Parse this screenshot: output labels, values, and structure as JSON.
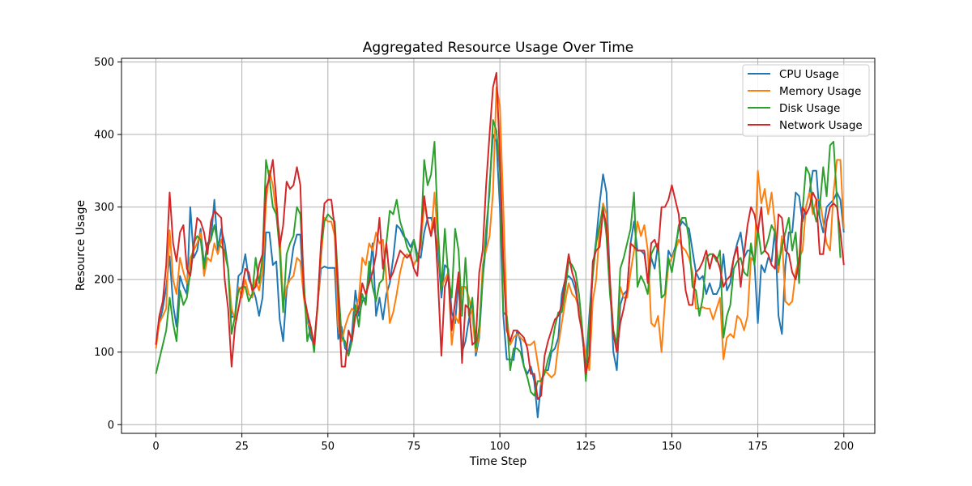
{
  "chart_data": {
    "type": "line",
    "title": "Aggregated Resource Usage Over Time",
    "xlabel": "Time Step",
    "ylabel": "Resource Usage",
    "xlim": [
      -10,
      209
    ],
    "ylim": [
      -12,
      505
    ],
    "xticks": [
      0,
      25,
      50,
      75,
      100,
      125,
      150,
      175,
      200
    ],
    "yticks": [
      0,
      100,
      200,
      300,
      400,
      500
    ],
    "grid": true,
    "legend_position": "top-right",
    "x_start": 0,
    "series": [
      {
        "name": "CPU Usage",
        "color": "#1f77b4",
        "values": [
          110,
          140,
          160,
          190,
          232,
          165,
          135,
          205,
          190,
          180,
          300,
          230,
          240,
          270,
          220,
          250,
          255,
          310,
          240,
          270,
          250,
          215,
          148,
          150,
          205,
          210,
          235,
          200,
          190,
          175,
          150,
          175,
          265,
          265,
          220,
          225,
          145,
          115,
          185,
          210,
          245,
          262,
          262,
          178,
          148,
          120,
          110,
          165,
          215,
          218,
          216,
          216,
          216,
          118,
          135,
          105,
          100,
          125,
          185,
          150,
          170,
          175,
          200,
          250,
          150,
          175,
          145,
          180,
          195,
          230,
          275,
          270,
          260,
          255,
          245,
          255,
          235,
          230,
          265,
          285,
          285,
          270,
          240,
          175,
          220,
          215,
          155,
          140,
          200,
          100,
          115,
          145,
          170,
          95,
          120,
          200,
          250,
          330,
          400,
          390,
          300,
          150,
          90,
          90,
          89,
          130,
          115,
          80,
          70,
          80,
          60,
          10,
          60,
          75,
          75,
          100,
          105,
          120,
          180,
          200,
          205,
          200,
          185,
          160,
          120,
          80,
          150,
          215,
          255,
          305,
          345,
          320,
          200,
          100,
          75,
          165,
          180,
          185,
          250,
          280,
          240,
          240,
          235,
          200,
          230,
          215,
          250,
          175,
          180,
          240,
          230,
          245,
          270,
          280,
          275,
          270,
          240,
          210,
          200,
          205,
          180,
          195,
          180,
          180,
          190,
          235,
          185,
          195,
          230,
          250,
          265,
          230,
          240,
          240,
          225,
          140,
          220,
          210,
          230,
          225,
          270,
          150,
          125,
          220,
          265,
          265,
          320,
          315,
          280,
          300,
          320,
          350,
          350,
          285,
          265,
          300,
          305,
          310,
          320,
          310,
          265
        ]
      },
      {
        "name": "Memory Usage",
        "color": "#ff7f0e",
        "values": [
          105,
          140,
          150,
          160,
          268,
          200,
          180,
          230,
          210,
          195,
          230,
          240,
          250,
          265,
          205,
          230,
          225,
          250,
          235,
          255,
          235,
          215,
          160,
          145,
          190,
          175,
          200,
          180,
          175,
          200,
          185,
          210,
          305,
          350,
          330,
          290,
          260,
          165,
          190,
          200,
          205,
          230,
          225,
          175,
          140,
          135,
          110,
          160,
          230,
          285,
          280,
          280,
          260,
          135,
          115,
          135,
          150,
          160,
          155,
          175,
          230,
          220,
          250,
          240,
          265,
          250,
          255,
          200,
          140,
          155,
          180,
          210,
          230,
          235,
          230,
          220,
          230,
          245,
          305,
          280,
          260,
          320,
          255,
          190,
          200,
          210,
          110,
          150,
          140,
          190,
          190,
          175,
          150,
          100,
          125,
          220,
          240,
          260,
          320,
          465,
          440,
          300,
          150,
          110,
          120,
          125,
          120,
          115,
          110,
          110,
          115,
          85,
          55,
          75,
          70,
          65,
          70,
          110,
          140,
          170,
          195,
          180,
          175,
          160,
          125,
          95,
          75,
          170,
          200,
          270,
          305,
          290,
          195,
          130,
          110,
          190,
          175,
          175,
          210,
          240,
          280,
          260,
          275,
          240,
          140,
          135,
          150,
          100,
          170,
          220,
          230,
          240,
          255,
          245,
          240,
          230,
          210,
          160,
          160,
          162,
          160,
          160,
          145,
          160,
          175,
          90,
          120,
          125,
          120,
          150,
          145,
          130,
          150,
          230,
          225,
          350,
          305,
          325,
          290,
          320,
          275,
          210,
          260,
          170,
          165,
          170,
          210,
          230,
          240,
          300,
          320,
          290,
          310,
          310,
          280,
          250,
          240,
          320,
          365,
          365,
          270
        ]
      },
      {
        "name": "Disk Usage",
        "color": "#2ca02c",
        "values": [
          70,
          90,
          110,
          130,
          175,
          140,
          115,
          185,
          165,
          175,
          210,
          250,
          260,
          255,
          215,
          245,
          255,
          275,
          250,
          245,
          240,
          215,
          125,
          150,
          185,
          190,
          190,
          170,
          180,
          230,
          195,
          230,
          365,
          340,
          300,
          290,
          240,
          155,
          235,
          250,
          260,
          300,
          290,
          200,
          115,
          135,
          100,
          165,
          245,
          280,
          290,
          285,
          280,
          195,
          120,
          115,
          95,
          115,
          165,
          135,
          180,
          165,
          225,
          190,
          170,
          195,
          200,
          250,
          295,
          290,
          310,
          280,
          265,
          245,
          235,
          255,
          225,
          250,
          365,
          330,
          345,
          390,
          270,
          185,
          270,
          205,
          175,
          270,
          240,
          150,
          230,
          150,
          175,
          105,
          135,
          200,
          270,
          320,
          420,
          405,
          350,
          155,
          150,
          75,
          105,
          105,
          100,
          80,
          65,
          45,
          40,
          60,
          60,
          70,
          90,
          105,
          135,
          155,
          155,
          185,
          225,
          220,
          210,
          180,
          130,
          60,
          140,
          205,
          250,
          275,
          300,
          260,
          180,
          130,
          110,
          215,
          230,
          250,
          270,
          320,
          190,
          205,
          195,
          180,
          235,
          245,
          250,
          175,
          180,
          230,
          210,
          240,
          275,
          285,
          285,
          255,
          190,
          185,
          150,
          175,
          230,
          235,
          235,
          225,
          240,
          120,
          150,
          165,
          215,
          225,
          230,
          210,
          205,
          250,
          220,
          270,
          235,
          240,
          255,
          275,
          265,
          220,
          245,
          265,
          285,
          240,
          265,
          195,
          295,
          355,
          345,
          300,
          280,
          300,
          355,
          315,
          385,
          390,
          310,
          230
        ]
      },
      {
        "name": "Network Usage",
        "color": "#d62728",
        "values": [
          110,
          150,
          170,
          220,
          320,
          250,
          225,
          265,
          275,
          215,
          205,
          245,
          285,
          280,
          265,
          235,
          280,
          295,
          290,
          285,
          200,
          160,
          80,
          135,
          160,
          185,
          215,
          210,
          185,
          190,
          220,
          235,
          325,
          340,
          365,
          310,
          245,
          275,
          335,
          325,
          330,
          355,
          330,
          180,
          155,
          135,
          110,
          165,
          250,
          305,
          310,
          310,
          270,
          180,
          80,
          80,
          130,
          115,
          150,
          160,
          195,
          180,
          195,
          210,
          235,
          285,
          215,
          250,
          200,
          210,
          225,
          240,
          235,
          230,
          235,
          215,
          205,
          265,
          315,
          280,
          260,
          285,
          200,
          95,
          190,
          205,
          130,
          170,
          210,
          85,
          165,
          160,
          110,
          115,
          210,
          240,
          330,
          400,
          465,
          485,
          370,
          225,
          130,
          115,
          130,
          130,
          125,
          120,
          105,
          70,
          70,
          35,
          40,
          95,
          115,
          130,
          145,
          150,
          165,
          200,
          235,
          210,
          195,
          150,
          125,
          70,
          95,
          225,
          240,
          245,
          295,
          275,
          200,
          125,
          100,
          140,
          160,
          185,
          250,
          245,
          240,
          240,
          240,
          195,
          250,
          255,
          240,
          300,
          300,
          310,
          330,
          310,
          290,
          235,
          185,
          165,
          165,
          210,
          215,
          225,
          240,
          215,
          235,
          230,
          215,
          190,
          200,
          205,
          230,
          245,
          190,
          235,
          275,
          300,
          290,
          265,
          300,
          240,
          235,
          220,
          215,
          290,
          285,
          240,
          235,
          210,
          200,
          225,
          300,
          290,
          300,
          320,
          310,
          235,
          235,
          280,
          300,
          305,
          300,
          265,
          220
        ]
      }
    ]
  }
}
